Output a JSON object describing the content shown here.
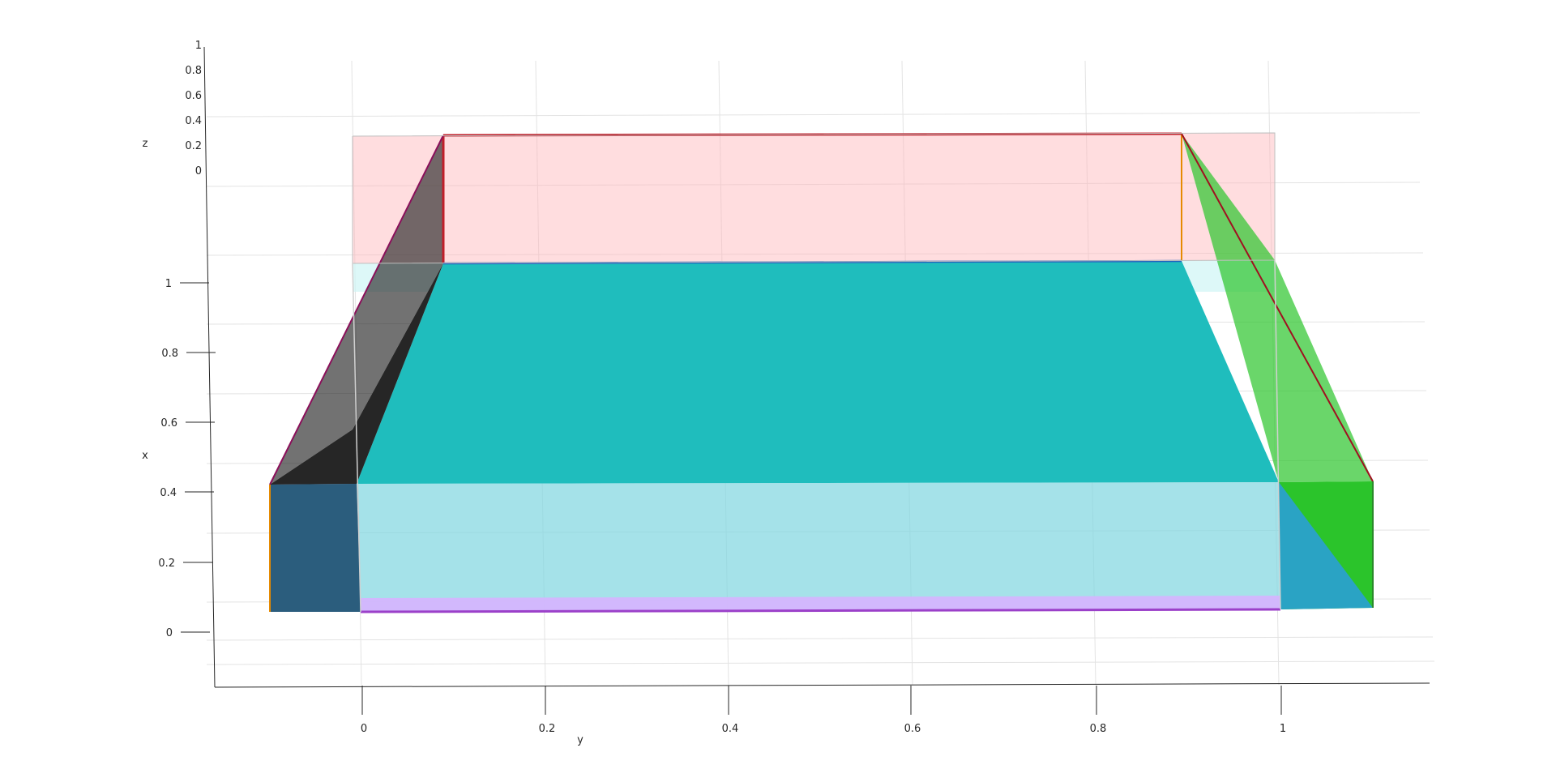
{
  "chart_data": {
    "type": "area",
    "title": "",
    "view": "3-D surface plot viewed from above with a slight tilt",
    "xlabel": "x",
    "ylabel": "y",
    "zlabel": "z",
    "x_ticks": [
      "0",
      "0.2",
      "0.4",
      "0.6",
      "0.8",
      "1"
    ],
    "y_ticks": [
      "0",
      "0.2",
      "0.4",
      "0.6",
      "0.8",
      "1"
    ],
    "z_ticks": [
      "0",
      "0.2",
      "0.4",
      "0.6",
      "0.8",
      "1"
    ],
    "xlim": [
      -0.15,
      1.1
    ],
    "ylim": [
      -0.1,
      1.1
    ],
    "zlim": [
      0,
      1
    ],
    "grid": true,
    "faces": [
      {
        "name": "floor",
        "color": "#1fbdbd"
      },
      {
        "name": "back-wall",
        "color": "#ffb3b8"
      },
      {
        "name": "front-wall",
        "color": "#d7b4ff"
      },
      {
        "name": "left-slope",
        "color": "#262626"
      },
      {
        "name": "right-slope",
        "color": "#2bc42b"
      },
      {
        "name": "front-left",
        "color": "#2aa3c4"
      },
      {
        "name": "front-right",
        "color": "#2aa3c4"
      }
    ],
    "boundary_colors": {
      "red": "#c01f2a",
      "blue": "#1f5fbf",
      "purple": "#9b40c9",
      "orange": "#e68a00"
    }
  }
}
